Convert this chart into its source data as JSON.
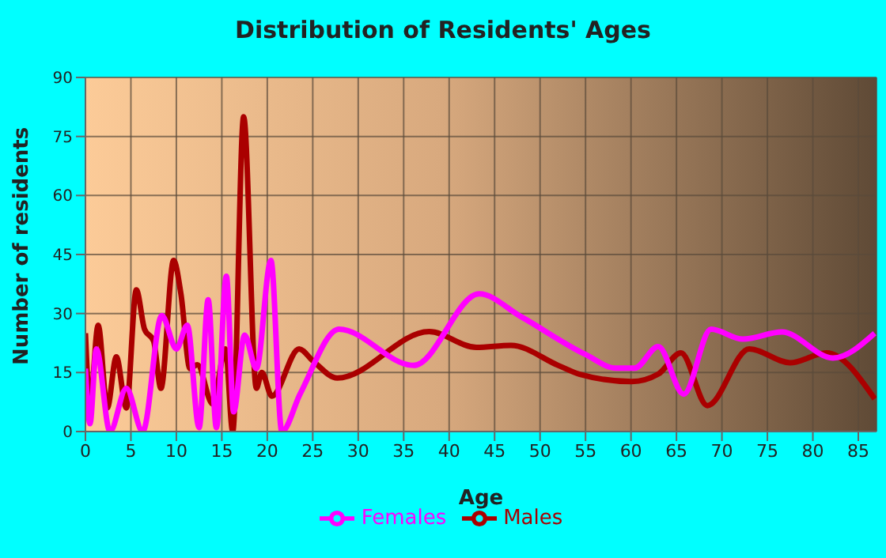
{
  "chart_data": {
    "type": "line",
    "title": "Distribution of Residents' Ages",
    "xlabel": "Age",
    "ylabel": "Number of residents",
    "xlim": [
      0,
      87
    ],
    "xticks": [
      0,
      5,
      10,
      15,
      20,
      25,
      30,
      35,
      40,
      45,
      50,
      55,
      60,
      65,
      70,
      75,
      80,
      85
    ],
    "ylim": [
      0,
      90
    ],
    "yticks": [
      0,
      15,
      30,
      45,
      60,
      75,
      90
    ],
    "grid": true,
    "legend": "bottom",
    "marker": "none",
    "line_style": "solid",
    "series": [
      {
        "name": "Males",
        "color": "#aa0000",
        "x": [
          0,
          0.5,
          1.4,
          2.4,
          3.4,
          4.5,
          5.6,
          6.5,
          7.5,
          8.3,
          9.7,
          10.5,
          11.5,
          12.3,
          14,
          15.4,
          16.2,
          17.4,
          18.8,
          19.4,
          20.5,
          23.5,
          25,
          27.7,
          37.8,
          43,
          46.8,
          52,
          54.3,
          60.1,
          63,
          65.5,
          68.4,
          73,
          77.5,
          81.5,
          86.8
        ],
        "values": [
          25,
          7,
          27,
          6,
          19,
          6,
          36,
          26,
          23,
          11,
          43.5,
          35,
          16,
          17,
          7,
          21,
          0,
          80,
          11,
          15,
          9,
          21,
          18,
          13.6,
          25.4,
          21.4,
          21.9,
          16.8,
          14.6,
          12.7,
          14.6,
          20,
          6.6,
          21,
          17.5,
          20,
          8.3
        ]
      },
      {
        "name": "Females",
        "color": "#ff00ff",
        "x": [
          0,
          0.5,
          1.2,
          2.7,
          4.5,
          6.3,
          8.4,
          10,
          11.2,
          12.5,
          13.5,
          14.4,
          15.5,
          16.3,
          17.5,
          18.8,
          20.4,
          21.6,
          23.6,
          27.9,
          36.1,
          43.3,
          47.9,
          54.9,
          58.4,
          60.4,
          63,
          65.8,
          68.8,
          72.3,
          76.6,
          82.2,
          86.8
        ],
        "values": [
          16,
          2,
          21,
          0,
          11,
          0,
          29.5,
          21,
          27,
          1,
          33.5,
          1,
          39.5,
          5,
          24.5,
          16,
          43.5,
          0,
          9.5,
          26,
          16.8,
          35,
          29.2,
          19.7,
          16.1,
          16.1,
          21.6,
          9.5,
          26,
          23.5,
          25.3,
          18.7,
          25
        ]
      }
    ]
  }
}
